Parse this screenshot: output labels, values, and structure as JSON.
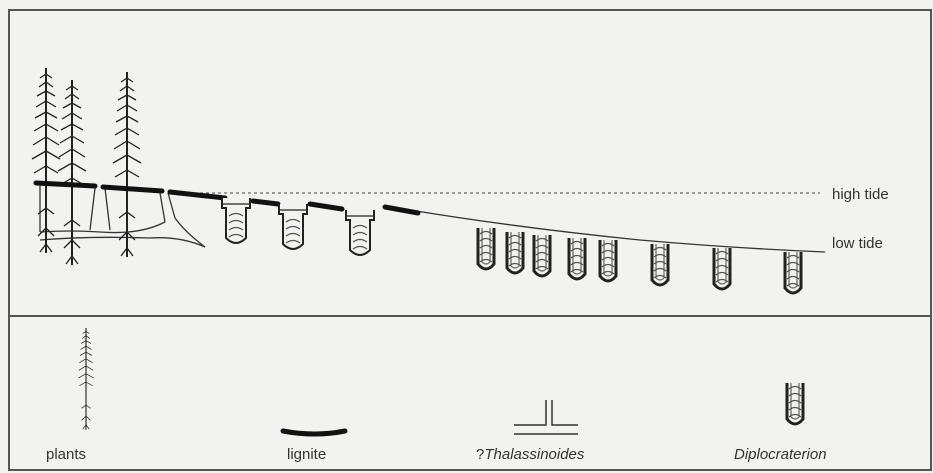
{
  "scene": {
    "tide_labels": {
      "high": "high tide",
      "low": "low tide"
    }
  },
  "legend": {
    "items": [
      {
        "key": "plants",
        "label": "plants"
      },
      {
        "key": "lignite",
        "label": "lignite"
      },
      {
        "key": "thalassinoides_prefix",
        "label": "?"
      },
      {
        "key": "thalassinoides",
        "label": "Thalassinoides"
      },
      {
        "key": "diplocraterion",
        "label": "Diplocraterion"
      }
    ]
  },
  "colors": {
    "ink": "#222222",
    "paper": "#f2f2f0",
    "frame": "#555555"
  }
}
